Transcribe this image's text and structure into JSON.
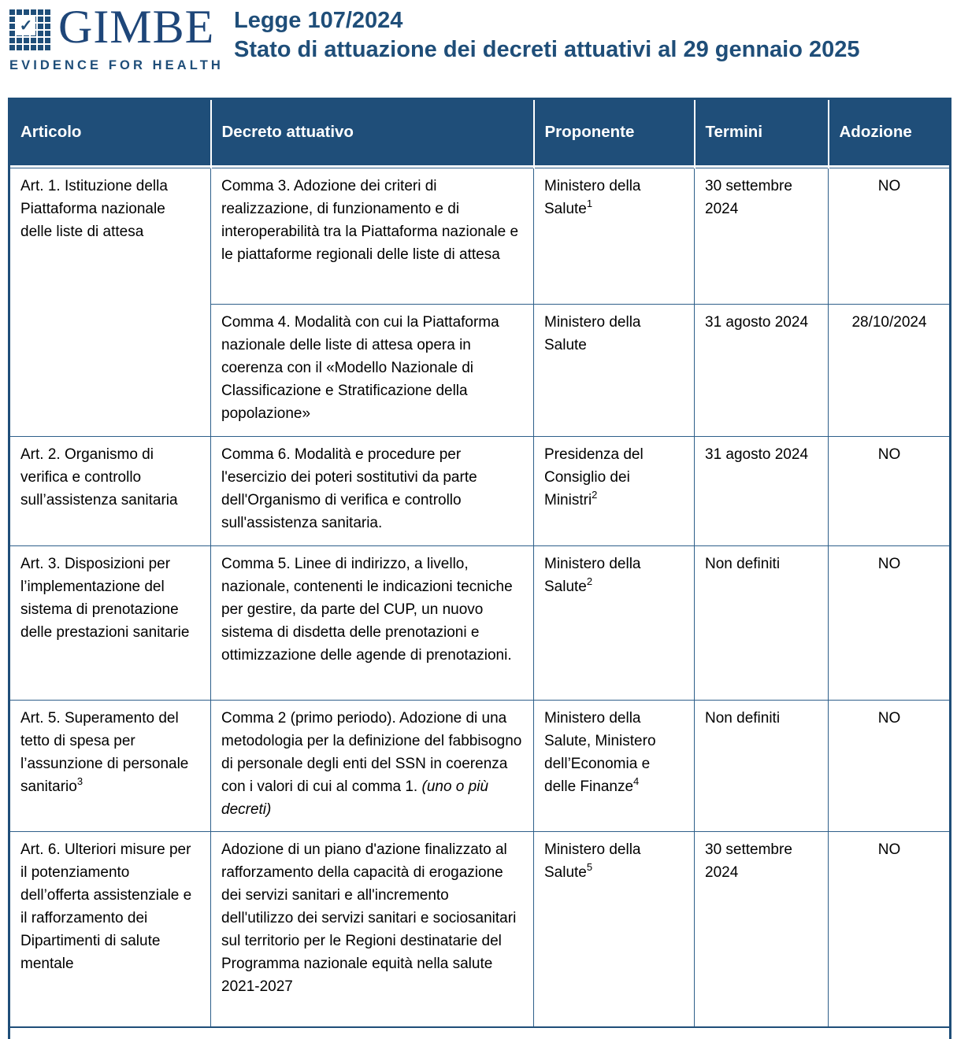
{
  "logo": {
    "wordmark": "GIMBE",
    "tagline": "EVIDENCE FOR HEALTH",
    "check_glyph": "✓"
  },
  "header": {
    "title": "Legge 107/2024",
    "subtitle": "Stato di attuazione dei decreti attuativi al 29 gennaio 2025"
  },
  "colors": {
    "accent_navy": "#1f4e79",
    "border_blue": "#2e5f8a",
    "header_text": "#ffffff"
  },
  "table": {
    "columns": [
      "Articolo",
      "Decreto attuativo",
      "Proponente",
      "Termini",
      "Adozione"
    ],
    "rows": [
      {
        "articolo": "Art. 1. Istituzione della Piattaforma nazionale delle liste di attesa",
        "decreto": "Comma 3. Adozione dei criteri di realizzazione, di funzionamento e di interoperabilità tra la Piattaforma nazionale e le piattaforme regionali delle liste di attesa",
        "proponente": "Ministero della Salute",
        "proponente_sup": "1",
        "termini": "30 settembre 2024",
        "adozione": "NO"
      },
      {
        "decreto": "Comma 4. Modalità con cui la Piattaforma nazionale delle liste di attesa opera in coerenza con il «Modello Nazionale di Classificazione e Stratificazione della popolazione»",
        "proponente": "Ministero della Salute",
        "termini": "31 agosto 2024",
        "adozione": "28/10/2024"
      },
      {
        "articolo": "Art. 2. Organismo di verifica e controllo sull’assistenza sanitaria",
        "decreto": "Comma 6. Modalità e procedure per l'esercizio dei poteri sostitutivi da parte dell'Organismo di verifica e controllo sull'assistenza sanitaria.",
        "proponente": "Presidenza del Consiglio dei Ministri",
        "proponente_sup": "2",
        "termini": "31 agosto 2024",
        "adozione": "NO"
      },
      {
        "articolo": "Art. 3. Disposizioni per l’implementazione del sistema di prenotazione delle prestazioni sanitarie",
        "decreto": "Comma 5. Linee di indirizzo, a livello, nazionale, contenenti le indicazioni tecniche per gestire, da parte del CUP, un nuovo sistema di disdetta delle prenotazioni e ottimizzazione delle agende di prenotazioni.",
        "proponente": "Ministero della Salute",
        "proponente_sup": "2",
        "termini": "Non definiti",
        "adozione": "NO"
      },
      {
        "articolo": "Art. 5. Superamento del tetto di spesa per l’assunzione di personale sanitario",
        "articolo_sup": "3",
        "decreto": "Comma 2 (primo periodo). Adozione di una metodologia per la definizione del fabbisogno di personale degli enti del SSN in coerenza con i valori di cui al comma 1. ",
        "decreto_italic": "(uno o più decreti)",
        "proponente": "Ministero della Salute, Ministero dell’Economia e delle Finanze",
        "proponente_sup": "4",
        "termini": "Non definiti",
        "adozione": "NO"
      },
      {
        "articolo": "Art. 6. Ulteriori misure per il potenziamento dell’offerta assistenziale e il rafforzamento dei Dipartimenti di salute mentale",
        "decreto": "Adozione di un piano d'azione finalizzato al rafforzamento della capacità di erogazione dei servizi sanitari e all'incremento dell'utilizzo dei servizi sanitari e sociosanitari sul territorio per le Regioni destinatarie del Programma nazionale equità nella salute 2021-2027",
        "proponente": "Ministero della Salute",
        "proponente_sup": "5",
        "termini": "30 settembre 2024",
        "adozione": "NO"
      }
    ]
  }
}
